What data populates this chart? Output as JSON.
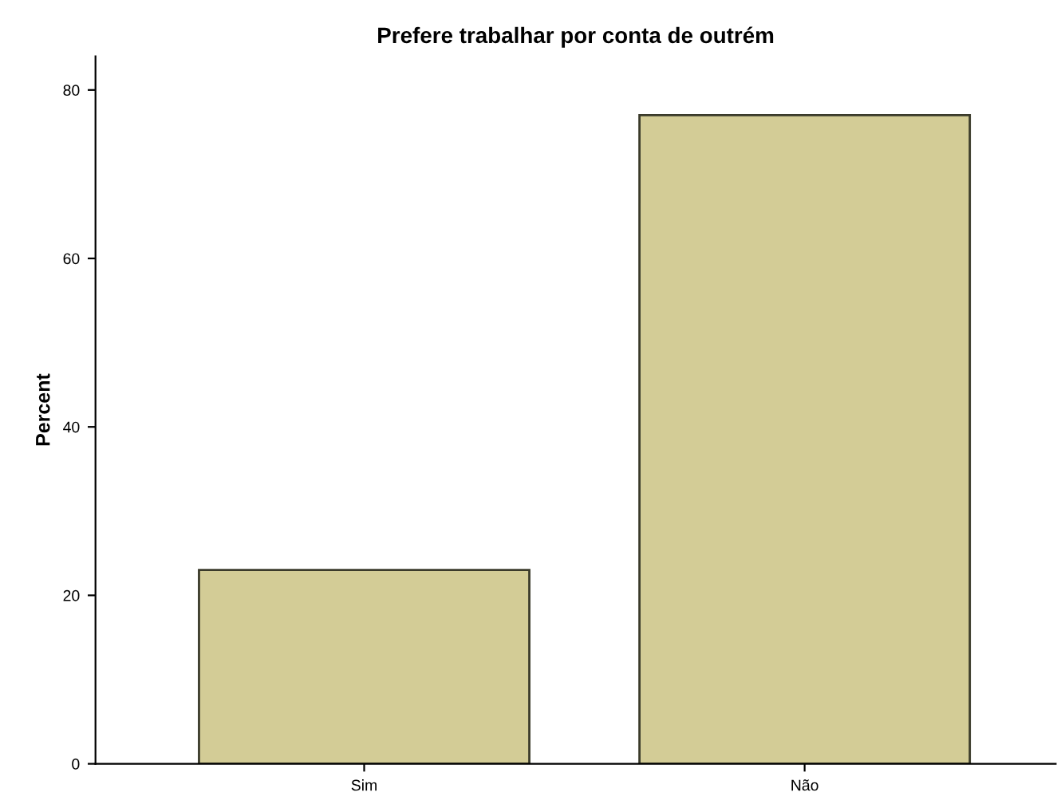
{
  "chart_data": {
    "type": "bar",
    "title": "Prefere trabalhar por conta de outrém",
    "ylabel": "Percent",
    "categories": [
      "Sim",
      "Não"
    ],
    "values": [
      23,
      77
    ],
    "color": "#d3cc96",
    "ylim": [
      0,
      84
    ],
    "yticks": [
      0,
      20,
      40,
      60,
      80
    ],
    "grid": false
  }
}
